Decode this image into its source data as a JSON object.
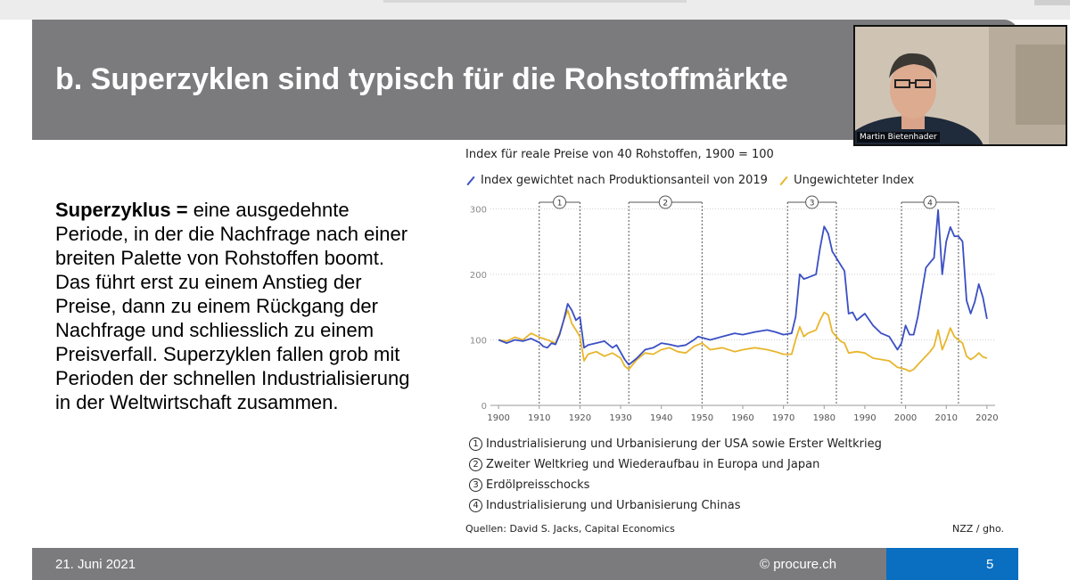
{
  "slide": {
    "title": "b. Superzyklen sind typisch für die Rohstoffmärkte",
    "body_bold": "Superzyklus = ",
    "body_text": " eine ausgedehnte Periode, in der die Nachfrage nach einer breiten Palette von Rohstoffen boomt. Das führt erst zu einem Anstieg der Preise, dann zu einem Rückgang der Nachfrage und schliesslich zu einem Preisverfall. Superzyklen fallen grob mit Perioden der schnellen Industrialisierung in der Weltwirtschaft zusammen.",
    "footer_date": "21. Juni 2021",
    "footer_copyright": "© procure.ch",
    "page_number": "5"
  },
  "video": {
    "participant_name": "Martin Bietenhader"
  },
  "chart_data": {
    "type": "line",
    "title": "Index für reale Preise von 40 Rohstoffen, 1900 = 100",
    "xlim": [
      1898,
      2022
    ],
    "ylim": [
      0,
      310
    ],
    "x_ticks": [
      1900,
      1910,
      1920,
      1930,
      1940,
      1950,
      1960,
      1970,
      1980,
      1990,
      2000,
      2010,
      2020
    ],
    "y_ticks": [
      0,
      100,
      200,
      300
    ],
    "grid": "horizontal dotted",
    "series": [
      {
        "name": "Index gewichtet nach Produktionsanteil von 2019",
        "color": "#3a4fc4",
        "points": [
          [
            1900,
            100
          ],
          [
            1902,
            95
          ],
          [
            1904,
            100
          ],
          [
            1906,
            98
          ],
          [
            1908,
            102
          ],
          [
            1910,
            96
          ],
          [
            1911,
            90
          ],
          [
            1912,
            88
          ],
          [
            1913,
            95
          ],
          [
            1914,
            93
          ],
          [
            1915,
            108
          ],
          [
            1916,
            130
          ],
          [
            1917,
            155
          ],
          [
            1918,
            145
          ],
          [
            1919,
            130
          ],
          [
            1920,
            135
          ],
          [
            1921,
            88
          ],
          [
            1922,
            92
          ],
          [
            1924,
            95
          ],
          [
            1926,
            98
          ],
          [
            1928,
            88
          ],
          [
            1929,
            92
          ],
          [
            1931,
            70
          ],
          [
            1932,
            62
          ],
          [
            1934,
            72
          ],
          [
            1936,
            85
          ],
          [
            1938,
            88
          ],
          [
            1940,
            95
          ],
          [
            1942,
            93
          ],
          [
            1944,
            90
          ],
          [
            1946,
            92
          ],
          [
            1948,
            100
          ],
          [
            1949,
            105
          ],
          [
            1952,
            100
          ],
          [
            1955,
            105
          ],
          [
            1958,
            110
          ],
          [
            1960,
            108
          ],
          [
            1963,
            112
          ],
          [
            1966,
            115
          ],
          [
            1968,
            112
          ],
          [
            1970,
            108
          ],
          [
            1972,
            110
          ],
          [
            1973,
            135
          ],
          [
            1974,
            200
          ],
          [
            1975,
            193
          ],
          [
            1976,
            195
          ],
          [
            1978,
            200
          ],
          [
            1979,
            240
          ],
          [
            1980,
            273
          ],
          [
            1981,
            262
          ],
          [
            1982,
            235
          ],
          [
            1984,
            215
          ],
          [
            1985,
            205
          ],
          [
            1986,
            140
          ],
          [
            1987,
            142
          ],
          [
            1988,
            130
          ],
          [
            1990,
            140
          ],
          [
            1992,
            122
          ],
          [
            1994,
            110
          ],
          [
            1996,
            105
          ],
          [
            1998,
            85
          ],
          [
            1999,
            95
          ],
          [
            2000,
            122
          ],
          [
            2001,
            108
          ],
          [
            2002,
            108
          ],
          [
            2003,
            135
          ],
          [
            2005,
            210
          ],
          [
            2006,
            218
          ],
          [
            2007,
            225
          ],
          [
            2008,
            298
          ],
          [
            2009,
            200
          ],
          [
            2010,
            250
          ],
          [
            2011,
            272
          ],
          [
            2012,
            258
          ],
          [
            2013,
            258
          ],
          [
            2014,
            250
          ],
          [
            2015,
            160
          ],
          [
            2016,
            140
          ],
          [
            2017,
            158
          ],
          [
            2018,
            185
          ],
          [
            2019,
            165
          ],
          [
            2020,
            132
          ]
        ]
      },
      {
        "name": "Ungewichteter Index",
        "color": "#e8b62c",
        "points": [
          [
            1900,
            100
          ],
          [
            1902,
            98
          ],
          [
            1904,
            104
          ],
          [
            1906,
            100
          ],
          [
            1908,
            110
          ],
          [
            1910,
            104
          ],
          [
            1912,
            100
          ],
          [
            1914,
            95
          ],
          [
            1915,
            110
          ],
          [
            1916,
            130
          ],
          [
            1917,
            145
          ],
          [
            1918,
            125
          ],
          [
            1919,
            115
          ],
          [
            1920,
            105
          ],
          [
            1921,
            68
          ],
          [
            1922,
            78
          ],
          [
            1924,
            82
          ],
          [
            1926,
            75
          ],
          [
            1928,
            80
          ],
          [
            1930,
            72
          ],
          [
            1931,
            60
          ],
          [
            1932,
            55
          ],
          [
            1934,
            70
          ],
          [
            1936,
            80
          ],
          [
            1938,
            78
          ],
          [
            1940,
            85
          ],
          [
            1942,
            88
          ],
          [
            1944,
            82
          ],
          [
            1946,
            80
          ],
          [
            1948,
            90
          ],
          [
            1950,
            95
          ],
          [
            1952,
            85
          ],
          [
            1955,
            88
          ],
          [
            1958,
            82
          ],
          [
            1960,
            85
          ],
          [
            1963,
            88
          ],
          [
            1966,
            85
          ],
          [
            1968,
            82
          ],
          [
            1970,
            78
          ],
          [
            1972,
            78
          ],
          [
            1973,
            100
          ],
          [
            1974,
            120
          ],
          [
            1975,
            105
          ],
          [
            1976,
            110
          ],
          [
            1978,
            115
          ],
          [
            1979,
            130
          ],
          [
            1980,
            142
          ],
          [
            1981,
            138
          ],
          [
            1982,
            112
          ],
          [
            1984,
            98
          ],
          [
            1985,
            95
          ],
          [
            1986,
            80
          ],
          [
            1988,
            82
          ],
          [
            1990,
            80
          ],
          [
            1992,
            72
          ],
          [
            1994,
            70
          ],
          [
            1996,
            68
          ],
          [
            1998,
            58
          ],
          [
            2000,
            55
          ],
          [
            2001,
            52
          ],
          [
            2002,
            55
          ],
          [
            2003,
            62
          ],
          [
            2005,
            75
          ],
          [
            2006,
            82
          ],
          [
            2007,
            90
          ],
          [
            2008,
            115
          ],
          [
            2009,
            85
          ],
          [
            2010,
            100
          ],
          [
            2011,
            118
          ],
          [
            2012,
            105
          ],
          [
            2013,
            100
          ],
          [
            2014,
            95
          ],
          [
            2015,
            75
          ],
          [
            2016,
            70
          ],
          [
            2017,
            74
          ],
          [
            2018,
            80
          ],
          [
            2019,
            74
          ],
          [
            2020,
            72
          ]
        ]
      }
    ],
    "periods": [
      {
        "label": "1",
        "start": 1910,
        "end": 1920,
        "text": "Industrialisierung und Urbanisierung der USA sowie Erster Weltkrieg"
      },
      {
        "label": "2",
        "start": 1932,
        "end": 1950,
        "text": "Zweiter Weltkrieg und Wiederaufbau in Europa und Japan"
      },
      {
        "label": "3",
        "start": 1971,
        "end": 1983,
        "text": "Erdölpreisschocks"
      },
      {
        "label": "4",
        "start": 1999,
        "end": 2013,
        "text": "Industrialisierung und Urbanisierung Chinas"
      }
    ],
    "source": "Quellen: David S. Jacks, Capital Economics",
    "credit": "NZZ / gho."
  }
}
